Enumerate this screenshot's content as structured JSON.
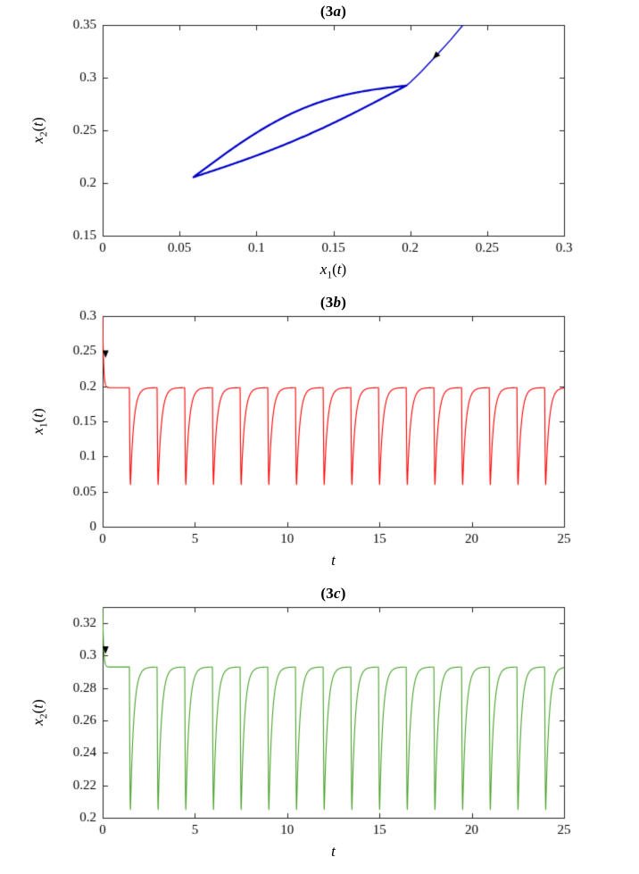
{
  "page": {
    "background": "#ffffff"
  },
  "axis_color": "#262626",
  "text_color": "#000000",
  "chart_data": [
    {
      "name": "3a",
      "type": "line",
      "title": "(3a)",
      "xlabel": "x_1(t)",
      "ylabel": "x_2(t)",
      "xlim": [
        0,
        0.3
      ],
      "ylim": [
        0.15,
        0.35
      ],
      "xticks": [
        0,
        0.05,
        0.1,
        0.15,
        0.2,
        0.25,
        0.3
      ],
      "xtick_labels": [
        "0",
        "0.05",
        "0.1",
        "0.15",
        "0.2",
        "0.25",
        "0.3"
      ],
      "yticks": [
        0.15,
        0.2,
        0.25,
        0.3,
        0.35
      ],
      "ytick_labels": [
        "0.15",
        "0.2",
        "0.25",
        "0.3",
        "0.35"
      ],
      "grid": false,
      "legend": null,
      "series": [
        {
          "name": "approach-trajectory",
          "color": "#0000c8",
          "width": 1.4,
          "mode": "polyline",
          "points": [
            [
              0.2355,
              0.352
            ],
            [
              0.226,
              0.3355
            ],
            [
              0.216,
              0.3195
            ],
            [
              0.207,
              0.3055
            ],
            [
              0.2,
              0.2955
            ],
            [
              0.1975,
              0.2925
            ]
          ]
        },
        {
          "name": "limit-cycle",
          "color": "#0000c8",
          "width": 2.2,
          "mode": "loop",
          "params": {
            "x_left": 0.059,
            "y_left": 0.2055,
            "x_right": 0.1975,
            "y_right": 0.2925,
            "bulge_up": 0.0205,
            "bulge_down": 0.0065
          }
        }
      ],
      "arrow": {
        "x": 0.2165,
        "y": 0.3205,
        "dx": -0.019,
        "dy": -0.029
      }
    },
    {
      "name": "3b",
      "type": "line",
      "title": "(3b)",
      "xlabel": "t",
      "ylabel": "x_1(t)",
      "xlim": [
        0,
        25
      ],
      "ylim": [
        0,
        0.3
      ],
      "xticks": [
        0,
        5,
        10,
        15,
        20,
        25
      ],
      "xtick_labels": [
        "0",
        "5",
        "10",
        "15",
        "20",
        "25"
      ],
      "yticks": [
        0,
        0.05,
        0.1,
        0.15,
        0.2,
        0.25,
        0.3
      ],
      "ytick_labels": [
        "0",
        "0.05",
        "0.1",
        "0.15",
        "0.2",
        "0.25",
        "0.3"
      ],
      "grid": false,
      "legend": null,
      "series": [
        {
          "name": "x1-time-series",
          "color": "#ff0000",
          "width": 1.1,
          "mode": "pulse_train",
          "params": {
            "initial_value": 0.3,
            "baseline": 0.198,
            "dip_min": 0.06,
            "first_dip": 1.45,
            "period": 1.5,
            "transient_tau": 0.05,
            "drop_duration": 0.06,
            "recovery_tau": 0.18,
            "t_end": 25
          }
        }
      ],
      "arrow": {
        "x": 0.16,
        "y": 0.246,
        "dx": 0.0,
        "dy": -0.1
      }
    },
    {
      "name": "3c",
      "type": "line",
      "title": "(3c)",
      "xlabel": "t",
      "ylabel": "x_2(t)",
      "xlim": [
        0,
        25
      ],
      "ylim": [
        0.2,
        0.33
      ],
      "xticks": [
        0,
        5,
        10,
        15,
        20,
        25
      ],
      "xtick_labels": [
        "0",
        "5",
        "10",
        "15",
        "20",
        "25"
      ],
      "yticks": [
        0.2,
        0.22,
        0.24,
        0.26,
        0.28,
        0.3,
        0.32
      ],
      "ytick_labels": [
        "0.2",
        "0.22",
        "0.24",
        "0.26",
        "0.28",
        "0.3",
        "0.32"
      ],
      "grid": false,
      "legend": null,
      "series": [
        {
          "name": "x2-time-series",
          "color": "#4aa02c",
          "width": 1.1,
          "mode": "pulse_train",
          "params": {
            "initial_value": 0.33,
            "baseline": 0.293,
            "dip_min": 0.205,
            "first_dip": 1.45,
            "period": 1.5,
            "transient_tau": 0.05,
            "drop_duration": 0.06,
            "recovery_tau": 0.18,
            "t_end": 25
          }
        }
      ],
      "arrow": {
        "x": 0.16,
        "y": 0.3035,
        "dx": 0.0,
        "dy": -0.1
      }
    }
  ]
}
